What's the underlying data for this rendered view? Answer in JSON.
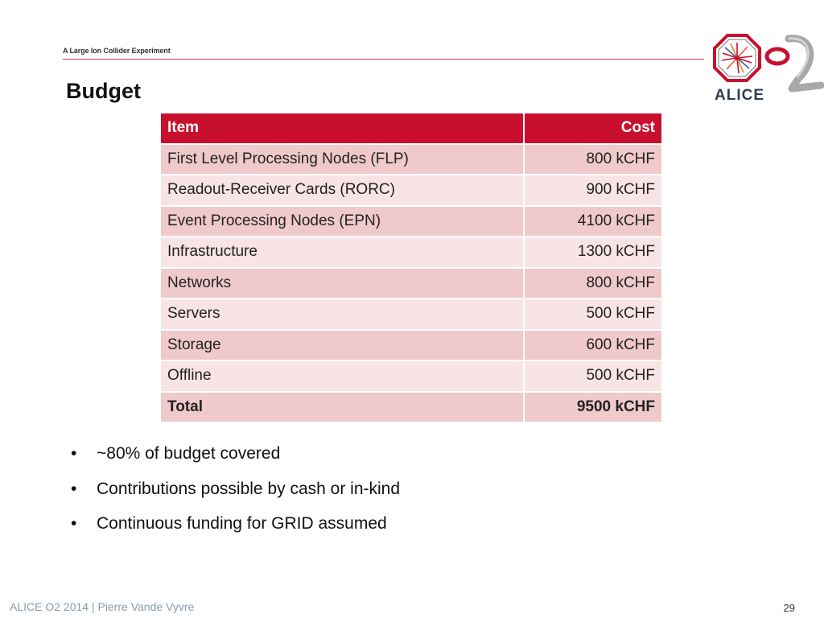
{
  "header": {
    "experiment": "A Large Ion Collider Experiment",
    "logo_text": "ALICE"
  },
  "title": "Budget",
  "table": {
    "headers": {
      "item": "Item",
      "cost": "Cost"
    },
    "rows": [
      {
        "item": "First Level Processing Nodes (FLP)",
        "cost": "800 kCHF"
      },
      {
        "item": "Readout-Receiver Cards (RORC)",
        "cost": "900 kCHF"
      },
      {
        "item": "Event Processing Nodes (EPN)",
        "cost": "4100 kCHF"
      },
      {
        "item": "Infrastructure",
        "cost": "1300 kCHF"
      },
      {
        "item": "Networks",
        "cost": "800 kCHF"
      },
      {
        "item": "Servers",
        "cost": "500 kCHF"
      },
      {
        "item": "Storage",
        "cost": "600 kCHF"
      },
      {
        "item": "Offline",
        "cost": "500 kCHF"
      }
    ],
    "total": {
      "item": "Total",
      "cost": "9500 kCHF"
    }
  },
  "bullets": [
    "~80% of budget covered",
    "Contributions possible by cash or in-kind",
    "Continuous funding for GRID assumed"
  ],
  "footer": {
    "left": "ALICE O2  2014 |  Pierre Vande Vyvre",
    "page_number": "29"
  },
  "colors": {
    "header_red": "#c8102e",
    "row_dark": "#f0c9cb",
    "row_light": "#f8e4e5"
  }
}
